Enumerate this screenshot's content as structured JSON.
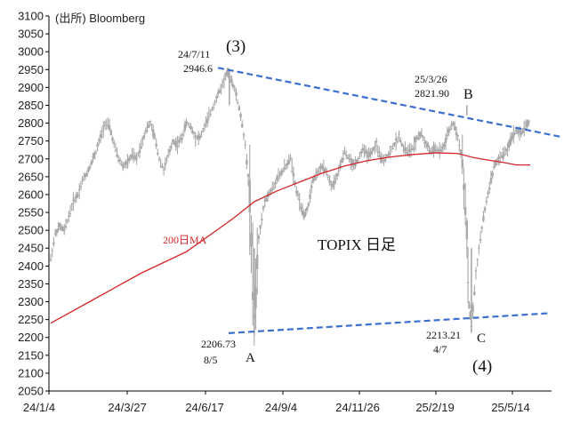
{
  "chart_data": {
    "type": "candlestick",
    "title": "TOPIX 日足",
    "source": "(出所) Bloomberg",
    "ylim": [
      2050,
      3100
    ],
    "yticks": [
      2050,
      2100,
      2150,
      2200,
      2250,
      2300,
      2350,
      2400,
      2450,
      2500,
      2550,
      2600,
      2650,
      2700,
      2750,
      2800,
      2850,
      2900,
      2950,
      3000,
      3050,
      3100
    ],
    "x_tick_labels": [
      "24/1/4",
      "24/3/27",
      "24/6/17",
      "24/9/4",
      "24/11/26",
      "25/2/19",
      "25/5/14"
    ],
    "ma_label": "200日MA",
    "colors": {
      "price": "#a9a9a9",
      "ma": "#d62728",
      "trendline": "#3b6fd0",
      "axis": "#000000"
    },
    "price_path": [
      [
        0,
        2420
      ],
      [
        2,
        2490
      ],
      [
        4,
        2510
      ],
      [
        6,
        2500
      ],
      [
        8,
        2540
      ],
      [
        10,
        2580
      ],
      [
        12,
        2600
      ],
      [
        14,
        2640
      ],
      [
        16,
        2660
      ],
      [
        18,
        2690
      ],
      [
        20,
        2720
      ],
      [
        22,
        2760
      ],
      [
        24,
        2800
      ],
      [
        26,
        2790
      ],
      [
        28,
        2740
      ],
      [
        30,
        2700
      ],
      [
        32,
        2680
      ],
      [
        34,
        2690
      ],
      [
        36,
        2710
      ],
      [
        38,
        2700
      ],
      [
        40,
        2740
      ],
      [
        42,
        2780
      ],
      [
        44,
        2800
      ],
      [
        46,
        2760
      ],
      [
        48,
        2700
      ],
      [
        50,
        2670
      ],
      [
        52,
        2710
      ],
      [
        54,
        2750
      ],
      [
        56,
        2740
      ],
      [
        58,
        2760
      ],
      [
        60,
        2800
      ],
      [
        62,
        2790
      ],
      [
        64,
        2760
      ],
      [
        66,
        2760
      ],
      [
        68,
        2790
      ],
      [
        70,
        2820
      ],
      [
        72,
        2850
      ],
      [
        74,
        2880
      ],
      [
        76,
        2910
      ],
      [
        78,
        2940
      ],
      [
        80,
        2920
      ],
      [
        82,
        2880
      ],
      [
        84,
        2820
      ],
      [
        86,
        2740
      ],
      [
        88,
        2600
      ],
      [
        90,
        2240
      ],
      [
        92,
        2480
      ],
      [
        94,
        2560
      ],
      [
        96,
        2600
      ],
      [
        98,
        2620
      ],
      [
        100,
        2640
      ],
      [
        102,
        2660
      ],
      [
        104,
        2680
      ],
      [
        106,
        2700
      ],
      [
        108,
        2630
      ],
      [
        110,
        2580
      ],
      [
        112,
        2540
      ],
      [
        114,
        2570
      ],
      [
        116,
        2640
      ],
      [
        118,
        2660
      ],
      [
        120,
        2680
      ],
      [
        122,
        2660
      ],
      [
        124,
        2620
      ],
      [
        126,
        2640
      ],
      [
        128,
        2680
      ],
      [
        130,
        2720
      ],
      [
        132,
        2700
      ],
      [
        134,
        2680
      ],
      [
        136,
        2700
      ],
      [
        138,
        2730
      ],
      [
        140,
        2710
      ],
      [
        142,
        2720
      ],
      [
        144,
        2740
      ],
      [
        146,
        2700
      ],
      [
        148,
        2700
      ],
      [
        150,
        2720
      ],
      [
        152,
        2740
      ],
      [
        154,
        2760
      ],
      [
        156,
        2730
      ],
      [
        158,
        2720
      ],
      [
        160,
        2730
      ],
      [
        162,
        2760
      ],
      [
        164,
        2770
      ],
      [
        166,
        2740
      ],
      [
        168,
        2720
      ],
      [
        170,
        2730
      ],
      [
        172,
        2720
      ],
      [
        174,
        2740
      ],
      [
        176,
        2780
      ],
      [
        178,
        2800
      ],
      [
        180,
        2760
      ],
      [
        182,
        2700
      ],
      [
        184,
        2500
      ],
      [
        185,
        2290
      ],
      [
        186,
        2230
      ],
      [
        188,
        2380
      ],
      [
        190,
        2480
      ],
      [
        192,
        2560
      ],
      [
        194,
        2620
      ],
      [
        196,
        2680
      ],
      [
        198,
        2700
      ],
      [
        200,
        2710
      ],
      [
        202,
        2730
      ],
      [
        204,
        2760
      ],
      [
        206,
        2780
      ],
      [
        208,
        2770
      ],
      [
        210,
        2790
      ],
      [
        212,
        2810
      ]
    ],
    "ma_path": [
      [
        0,
        2240
      ],
      [
        20,
        2310
      ],
      [
        40,
        2380
      ],
      [
        60,
        2440
      ],
      [
        80,
        2530
      ],
      [
        90,
        2580
      ],
      [
        100,
        2610
      ],
      [
        110,
        2635
      ],
      [
        120,
        2660
      ],
      [
        130,
        2680
      ],
      [
        140,
        2695
      ],
      [
        150,
        2705
      ],
      [
        160,
        2712
      ],
      [
        170,
        2717
      ],
      [
        180,
        2715
      ],
      [
        186,
        2705
      ],
      [
        190,
        2700
      ],
      [
        200,
        2690
      ],
      [
        206,
        2683
      ],
      [
        212,
        2683
      ]
    ],
    "annotations": [
      {
        "label": "(3)",
        "date": "24/7/11",
        "value": "2946.6"
      },
      {
        "label": "B",
        "date": "25/3/26",
        "value": "2821.90"
      },
      {
        "label": "A",
        "date": "8/5",
        "value": "2206.73"
      },
      {
        "label": "C",
        "date": "4/7",
        "value": "2213.21"
      },
      {
        "label": "(4)",
        "date": "",
        "value": ""
      }
    ]
  }
}
